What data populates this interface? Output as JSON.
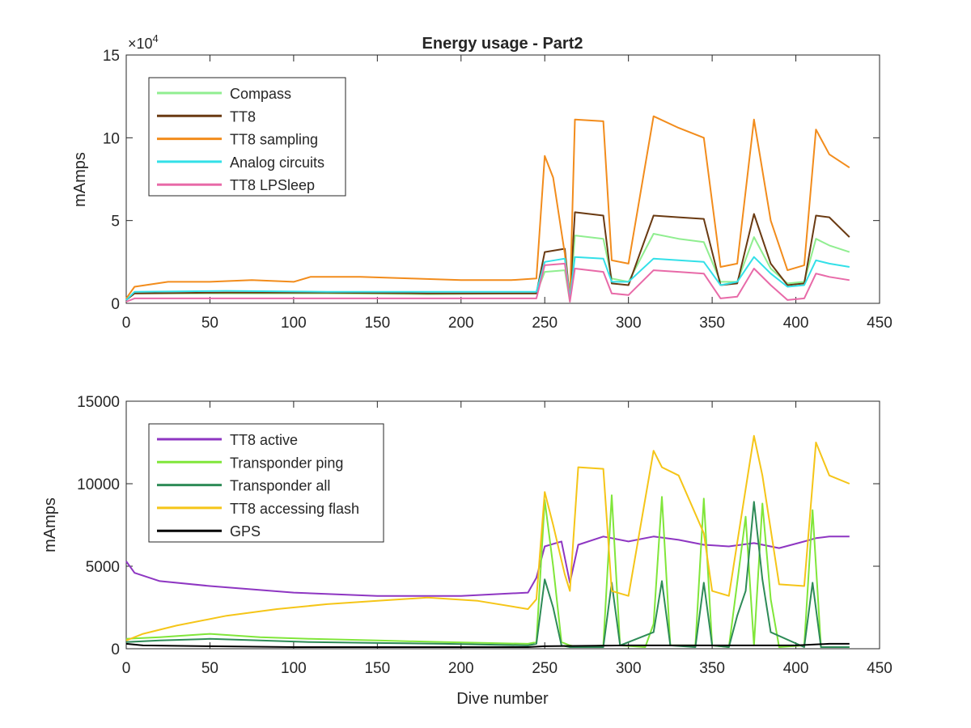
{
  "chart_data": [
    {
      "type": "line",
      "title": "Energy usage - Part2",
      "xlabel": "",
      "ylabel": "mAmps",
      "y_multiplier_label": "×10^4",
      "xlim": [
        0,
        450
      ],
      "ylim": [
        0,
        15
      ],
      "xticks": [
        "0",
        "50",
        "100",
        "150",
        "200",
        "250",
        "300",
        "350",
        "400",
        "450"
      ],
      "yticks": [
        "0",
        "5",
        "10",
        "15"
      ],
      "legend_location": "top-left",
      "grid": false,
      "series": [
        {
          "name": "Compass",
          "color": "#90EE90",
          "x": [
            0,
            5,
            60,
            120,
            180,
            245,
            250,
            262,
            265,
            268,
            285,
            290,
            300,
            315,
            330,
            345,
            355,
            365,
            375,
            385,
            395,
            405,
            412,
            420,
            432
          ],
          "y": [
            0.2,
            0.6,
            0.6,
            0.6,
            0.55,
            0.6,
            1.9,
            2.0,
            0.1,
            4.1,
            3.9,
            1.5,
            1.3,
            4.2,
            3.9,
            3.7,
            1.3,
            1.3,
            4.0,
            2.1,
            1.2,
            1.3,
            3.9,
            3.5,
            3.1
          ]
        },
        {
          "name": "TT8",
          "color": "#6A3A12",
          "x": [
            0,
            5,
            60,
            120,
            180,
            245,
            250,
            262,
            265,
            268,
            285,
            290,
            300,
            315,
            330,
            345,
            355,
            365,
            375,
            385,
            395,
            405,
            412,
            420,
            432
          ],
          "y": [
            0.2,
            0.6,
            0.65,
            0.65,
            0.6,
            0.6,
            3.1,
            3.3,
            0.3,
            5.5,
            5.3,
            1.2,
            1.1,
            5.3,
            5.2,
            5.1,
            1.1,
            1.2,
            5.4,
            2.4,
            1.1,
            1.2,
            5.3,
            5.2,
            4.0
          ]
        },
        {
          "name": "TT8 sampling",
          "color": "#F28C1C",
          "x": [
            0,
            5,
            25,
            50,
            75,
            100,
            110,
            140,
            170,
            200,
            230,
            245,
            250,
            255,
            262,
            265,
            268,
            285,
            290,
            300,
            315,
            330,
            345,
            355,
            365,
            375,
            385,
            395,
            405,
            412,
            420,
            432
          ],
          "y": [
            0.3,
            1.0,
            1.3,
            1.3,
            1.4,
            1.3,
            1.6,
            1.6,
            1.5,
            1.4,
            1.4,
            1.5,
            8.9,
            7.6,
            3.0,
            0.2,
            11.1,
            11.0,
            2.6,
            2.4,
            11.3,
            10.6,
            10.0,
            2.2,
            2.4,
            11.1,
            5.0,
            2.0,
            2.3,
            10.5,
            9.0,
            8.2
          ]
        },
        {
          "name": "Analog circuits",
          "color": "#33E0E8",
          "x": [
            0,
            5,
            60,
            120,
            180,
            245,
            250,
            262,
            265,
            268,
            285,
            290,
            300,
            315,
            330,
            345,
            355,
            365,
            375,
            385,
            395,
            405,
            412,
            420,
            432
          ],
          "y": [
            0.2,
            0.7,
            0.75,
            0.7,
            0.7,
            0.7,
            2.5,
            2.7,
            0.3,
            2.8,
            2.7,
            1.3,
            1.3,
            2.7,
            2.6,
            2.5,
            1.1,
            1.3,
            2.8,
            1.8,
            1.0,
            1.1,
            2.6,
            2.4,
            2.2
          ]
        },
        {
          "name": "TT8 LPSleep",
          "color": "#E86AA8",
          "x": [
            0,
            5,
            60,
            120,
            180,
            245,
            250,
            262,
            265,
            268,
            285,
            290,
            300,
            315,
            330,
            345,
            355,
            365,
            375,
            385,
            395,
            405,
            412,
            420,
            432
          ],
          "y": [
            0.1,
            0.3,
            0.3,
            0.3,
            0.3,
            0.3,
            2.3,
            2.4,
            0.1,
            2.1,
            1.9,
            0.6,
            0.5,
            2.0,
            1.9,
            1.8,
            0.3,
            0.4,
            2.1,
            1.1,
            0.2,
            0.3,
            1.8,
            1.6,
            1.4
          ]
        }
      ]
    },
    {
      "type": "line",
      "title": "",
      "xlabel": "Dive number",
      "ylabel": "mAmps",
      "xlim": [
        0,
        450
      ],
      "ylim": [
        0,
        15000
      ],
      "xticks": [
        "0",
        "50",
        "100",
        "150",
        "200",
        "250",
        "300",
        "350",
        "400",
        "450"
      ],
      "yticks": [
        "0",
        "5000",
        "10000",
        "15000"
      ],
      "legend_location": "top-left",
      "grid": false,
      "series": [
        {
          "name": "TT8 active",
          "color": "#8E36C2",
          "x": [
            0,
            5,
            20,
            50,
            100,
            150,
            200,
            240,
            245,
            250,
            260,
            265,
            270,
            285,
            290,
            300,
            315,
            330,
            345,
            360,
            375,
            390,
            405,
            412,
            420,
            432
          ],
          "y": [
            5300,
            4600,
            4100,
            3800,
            3400,
            3200,
            3200,
            3400,
            4300,
            6200,
            6500,
            4000,
            6300,
            6800,
            6700,
            6500,
            6800,
            6600,
            6300,
            6200,
            6400,
            6100,
            6500,
            6700,
            6800,
            6800
          ]
        },
        {
          "name": "Transponder ping",
          "color": "#80E63A",
          "x": [
            0,
            20,
            50,
            80,
            110,
            150,
            190,
            240,
            245,
            250,
            255,
            260,
            265,
            270,
            285,
            290,
            295,
            310,
            315,
            320,
            325,
            340,
            345,
            350,
            360,
            365,
            370,
            375,
            380,
            385,
            390,
            405,
            410,
            415,
            432
          ],
          "y": [
            600,
            700,
            900,
            700,
            600,
            500,
            400,
            300,
            400,
            9000,
            5000,
            400,
            200,
            100,
            200,
            9300,
            200,
            100,
            1500,
            9200,
            200,
            200,
            9100,
            200,
            100,
            4000,
            8000,
            200,
            8800,
            3000,
            100,
            200,
            8400,
            100,
            100
          ]
        },
        {
          "name": "Transponder all",
          "color": "#2E8B57",
          "x": [
            0,
            20,
            50,
            80,
            110,
            150,
            190,
            240,
            245,
            250,
            255,
            260,
            265,
            285,
            290,
            295,
            315,
            320,
            325,
            340,
            345,
            350,
            360,
            365,
            370,
            375,
            380,
            385,
            405,
            410,
            415,
            432
          ],
          "y": [
            400,
            500,
            600,
            500,
            400,
            350,
            300,
            200,
            300,
            4200,
            2500,
            200,
            100,
            100,
            4000,
            200,
            1000,
            4100,
            200,
            100,
            4000,
            200,
            100,
            2000,
            3500,
            8900,
            4200,
            1000,
            100,
            4000,
            100,
            100
          ]
        },
        {
          "name": "TT8 accessing flash",
          "color": "#F5C518",
          "x": [
            0,
            10,
            30,
            60,
            90,
            120,
            150,
            180,
            210,
            240,
            245,
            250,
            255,
            262,
            265,
            270,
            285,
            290,
            300,
            315,
            320,
            330,
            345,
            350,
            360,
            375,
            380,
            390,
            405,
            412,
            420,
            432
          ],
          "y": [
            500,
            900,
            1400,
            2000,
            2400,
            2700,
            2900,
            3100,
            2900,
            2400,
            3000,
            9500,
            7500,
            4500,
            3500,
            11000,
            10900,
            3500,
            3200,
            12000,
            11000,
            10500,
            7000,
            3500,
            3200,
            12900,
            10500,
            3900,
            3800,
            12500,
            10500,
            10000
          ]
        },
        {
          "name": "GPS",
          "color": "#000000",
          "x": [
            0,
            10,
            50,
            100,
            150,
            200,
            240,
            250,
            300,
            350,
            400,
            420,
            432
          ],
          "y": [
            300,
            200,
            150,
            100,
            100,
            100,
            100,
            150,
            200,
            200,
            200,
            300,
            300
          ]
        }
      ]
    }
  ]
}
